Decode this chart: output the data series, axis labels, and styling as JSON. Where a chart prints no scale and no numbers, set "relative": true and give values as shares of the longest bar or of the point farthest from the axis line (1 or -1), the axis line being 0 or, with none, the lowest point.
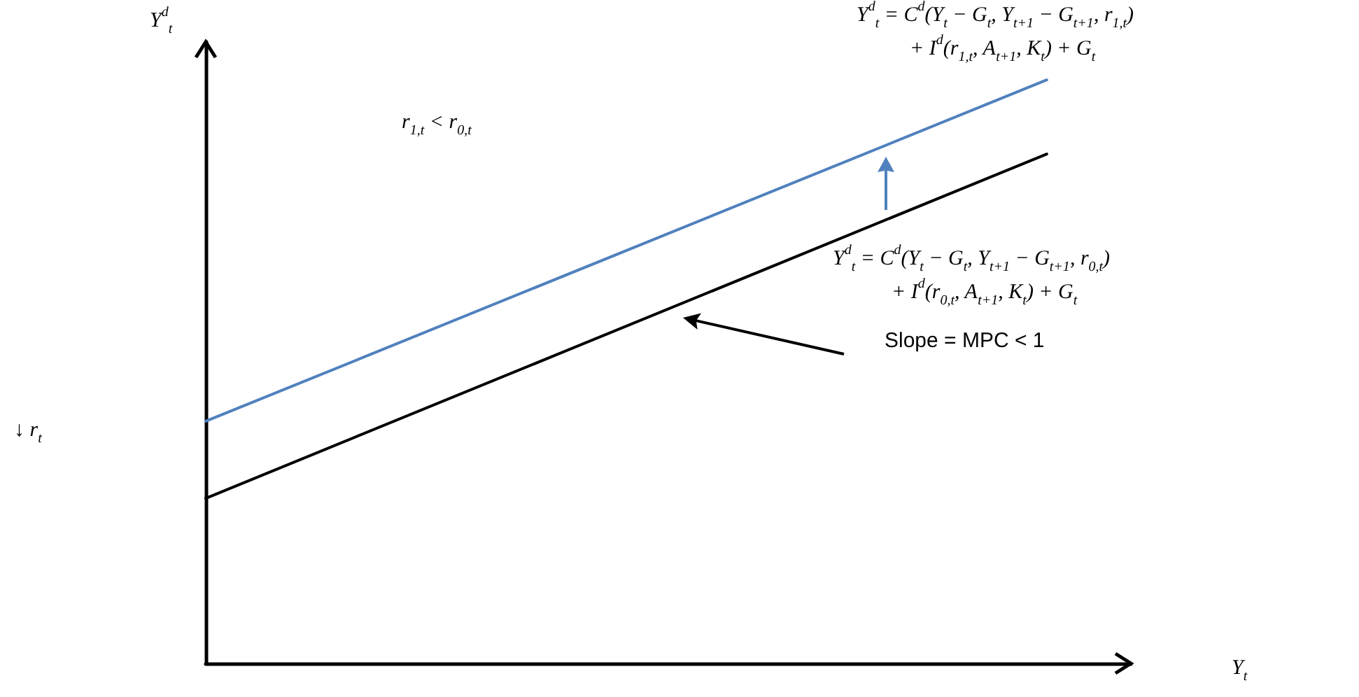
{
  "chart_data": {
    "type": "line",
    "relative": true,
    "xlabel": "Y$_{t}$",
    "ylabel": "Y$^{d}$$_{t}$",
    "categories": [
      null,
      null,
      null,
      null,
      null,
      null,
      null,
      null,
      null,
      null,
      null,
      null
    ],
    "series": [
      {
        "color": "#4f81bd",
        "values": [
          0.415,
          null,
          null,
          null,
          null,
          null,
          null,
          null,
          null,
          null,
          1,
          null
        ]
      },
      {
        "color": "#000000",
        "values": [
          0.283,
          null,
          null,
          null,
          null,
          null,
          null,
          null,
          null,
          null,
          0.873,
          null
        ]
      }
    ],
    "annotations": [
      "Y$^{d}$$_{t}$ = C$^{d}$(Y$_{t}$ − G$_{t}$, Y$_{t+1}$ − G$_{t+1}$, r$_{1,t}$)",
      "+ I$^{d}$(r$_{1,t}$, A$_{t+1}$, K$_{t}$) + G$_{t}$",
      "r$_{1,t}$ < r$_{0,t}$",
      "Y$^{d}$$_{t}$ = C$^{d}$(Y$_{t}$ − G$_{t}$, Y$_{t+1}$ − G$_{t+1}$, r$_{0,t}$)",
      "+ I$^{d}$(r$_{0,t}$, A$_{t+1}$, K$_{t}$) + G$_{t}$",
      "Slope = MPC < 1",
      "↓ r$_{t}$"
    ],
    "grid": false,
    "marker": "none",
    "line_style": "solid"
  }
}
